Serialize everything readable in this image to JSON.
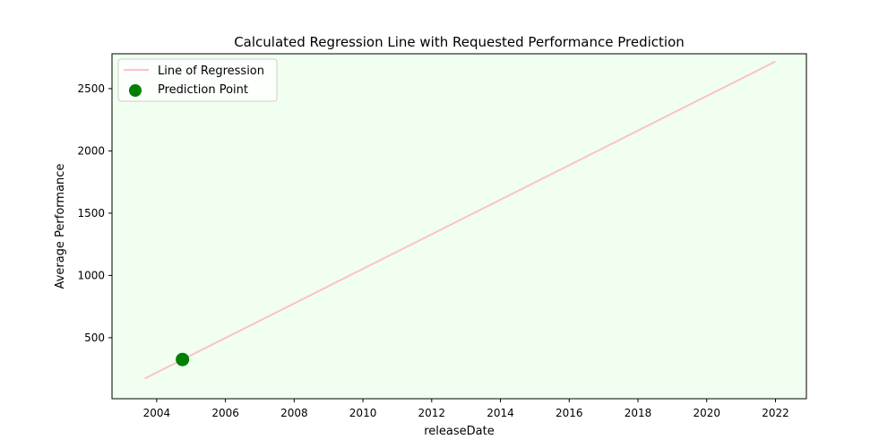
{
  "chart_data": {
    "type": "scatter",
    "title": "Calculated Regression Line with Requested Performance Prediction",
    "xlabel": "releaseDate",
    "ylabel": "Average Performance",
    "xlim": [
      2002.7,
      2022.9
    ],
    "ylim": [
      10,
      2780
    ],
    "x_ticks": [
      2004,
      2006,
      2008,
      2010,
      2012,
      2014,
      2016,
      2018,
      2020,
      2022
    ],
    "y_ticks": [
      500,
      1000,
      1500,
      2000,
      2500
    ],
    "plot_background": "#f0fff0",
    "legend_placement": "top-left",
    "grid": false,
    "series": [
      {
        "name": "Line of Regression",
        "kind": "line",
        "color": "#ffc0cb",
        "x": [
          2003.65,
          2022.0
        ],
        "y": [
          172,
          2718
        ]
      },
      {
        "name": "Prediction Point",
        "kind": "scatter",
        "color": "#008000",
        "x": [
          2004.75
        ],
        "y": [
          325
        ]
      }
    ]
  }
}
